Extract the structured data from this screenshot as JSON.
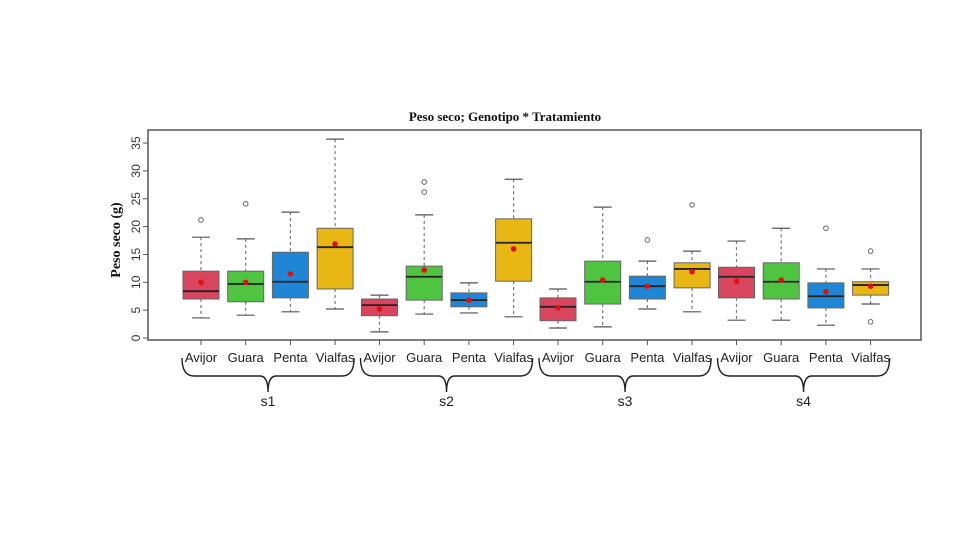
{
  "chart_data": {
    "type": "boxplot",
    "title": "Peso seco; Genotipo * Tratamiento",
    "xlabel": "",
    "ylabel": "Peso seco (g)",
    "ylim": [
      0,
      36
    ],
    "yticks": [
      0,
      5,
      10,
      15,
      20,
      25,
      30,
      35
    ],
    "grid": false,
    "legend": null,
    "groups": [
      "s1",
      "s2",
      "s3",
      "s4"
    ],
    "categories": [
      "Avijor",
      "Guara",
      "Penta",
      "Vialfas"
    ],
    "colors": {
      "Avijor": "#d9445e",
      "Guara": "#4ec440",
      "Penta": "#1f86d6",
      "Vialfas": "#e8b714",
      "mean_point": "#e01010",
      "outline": "#555555"
    },
    "series": [
      {
        "group": "s1",
        "genotype": "Avijor",
        "min": 3.6,
        "q1": 7.0,
        "median": 8.4,
        "q3": 12.0,
        "max": 18.1,
        "mean": 10.0,
        "outliers": [
          21.2
        ]
      },
      {
        "group": "s1",
        "genotype": "Guara",
        "min": 4.1,
        "q1": 6.5,
        "median": 9.7,
        "q3": 12.0,
        "max": 17.8,
        "mean": 10.0,
        "outliers": [
          24.1
        ]
      },
      {
        "group": "s1",
        "genotype": "Penta",
        "min": 4.7,
        "q1": 7.2,
        "median": 10.1,
        "q3": 15.4,
        "max": 22.6,
        "mean": 11.5,
        "outliers": []
      },
      {
        "group": "s1",
        "genotype": "Vialfas",
        "min": 5.2,
        "q1": 8.8,
        "median": 16.3,
        "q3": 19.7,
        "max": 35.7,
        "mean": 16.9,
        "outliers": []
      },
      {
        "group": "s2",
        "genotype": "Avijor",
        "min": 1.1,
        "q1": 4.0,
        "median": 5.9,
        "q3": 7.0,
        "max": 7.7,
        "mean": 5.2,
        "outliers": []
      },
      {
        "group": "s2",
        "genotype": "Guara",
        "min": 4.3,
        "q1": 6.8,
        "median": 11.0,
        "q3": 12.9,
        "max": 22.1,
        "mean": 12.2,
        "outliers": [
          26.2,
          28.0
        ]
      },
      {
        "group": "s2",
        "genotype": "Penta",
        "min": 4.5,
        "q1": 5.6,
        "median": 6.8,
        "q3": 8.1,
        "max": 9.9,
        "mean": 6.8,
        "outliers": []
      },
      {
        "group": "s2",
        "genotype": "Vialfas",
        "min": 3.8,
        "q1": 10.2,
        "median": 17.1,
        "q3": 21.4,
        "max": 28.5,
        "mean": 16.0,
        "outliers": []
      },
      {
        "group": "s3",
        "genotype": "Avijor",
        "min": 1.8,
        "q1": 3.1,
        "median": 5.6,
        "q3": 7.2,
        "max": 8.8,
        "mean": 5.4,
        "outliers": []
      },
      {
        "group": "s3",
        "genotype": "Guara",
        "min": 2.0,
        "q1": 6.1,
        "median": 10.1,
        "q3": 13.8,
        "max": 23.5,
        "mean": 10.4,
        "outliers": []
      },
      {
        "group": "s3",
        "genotype": "Penta",
        "min": 5.2,
        "q1": 7.0,
        "median": 9.3,
        "q3": 11.1,
        "max": 13.8,
        "mean": 9.3,
        "outliers": [
          17.6
        ]
      },
      {
        "group": "s3",
        "genotype": "Vialfas",
        "min": 4.7,
        "q1": 9.0,
        "median": 12.4,
        "q3": 13.5,
        "max": 15.6,
        "mean": 11.9,
        "outliers": [
          23.9
        ]
      },
      {
        "group": "s4",
        "genotype": "Avijor",
        "min": 3.2,
        "q1": 7.2,
        "median": 11.0,
        "q3": 12.7,
        "max": 17.4,
        "mean": 10.2,
        "outliers": []
      },
      {
        "group": "s4",
        "genotype": "Guara",
        "min": 3.2,
        "q1": 7.0,
        "median": 10.1,
        "q3": 13.5,
        "max": 19.7,
        "mean": 10.4,
        "outliers": []
      },
      {
        "group": "s4",
        "genotype": "Penta",
        "min": 2.3,
        "q1": 5.4,
        "median": 7.5,
        "q3": 9.9,
        "max": 12.4,
        "mean": 8.3,
        "outliers": [
          19.7
        ]
      },
      {
        "group": "s4",
        "genotype": "Vialfas",
        "min": 6.1,
        "q1": 7.7,
        "median": 9.5,
        "q3": 10.1,
        "max": 12.4,
        "mean": 9.3,
        "outliers": [
          15.6,
          2.9
        ]
      }
    ]
  }
}
